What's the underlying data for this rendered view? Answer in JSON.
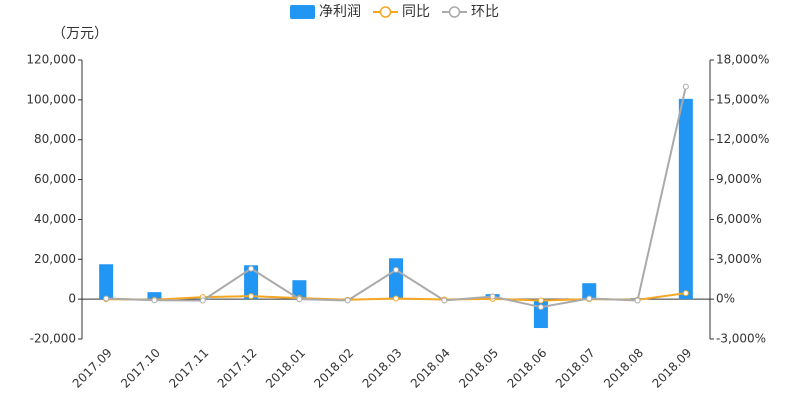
{
  "chart_data": {
    "type": "bar-line",
    "unit_label": "（万元）",
    "categories": [
      "2017.09",
      "2017.10",
      "2017.11",
      "2017.12",
      "2018.01",
      "2018.02",
      "2018.03",
      "2018.04",
      "2018.05",
      "2018.06",
      "2018.07",
      "2018.08",
      "2018.09"
    ],
    "series": [
      {
        "name": "净利润",
        "type": "bar",
        "color": "#2196f3",
        "axis": "y",
        "values": [
          17500,
          3500,
          300,
          17000,
          9500,
          -500,
          20500,
          -500,
          2500,
          -14500,
          8000,
          500,
          100500
        ]
      },
      {
        "name": "同比",
        "type": "line",
        "color": "#f5a623",
        "axis": "y2",
        "values": [
          0,
          -50,
          150,
          225,
          75,
          -50,
          50,
          -30,
          20,
          -100,
          0,
          -50,
          450
        ]
      },
      {
        "name": "环比",
        "type": "line",
        "color": "#aaaaaa",
        "axis": "y2",
        "values": [
          50,
          -80,
          -100,
          2300,
          0,
          -100,
          2200,
          -100,
          200,
          -600,
          50,
          -100,
          16000
        ]
      }
    ],
    "ylim": [
      -20000,
      120000
    ],
    "yticks": [
      {
        "value": -20000,
        "label": "-20,000"
      },
      0,
      {
        "value": 20000,
        "label": "20,000"
      },
      {
        "value": 40000,
        "label": "40,000"
      },
      {
        "value": 60000,
        "label": "60,000"
      },
      {
        "value": 80000,
        "label": "80,000"
      },
      {
        "value": 100000,
        "label": "100,000"
      },
      {
        "value": 120000,
        "label": "120,000"
      }
    ],
    "y2lim": [
      -3000,
      18000
    ],
    "y2ticks": [
      {
        "value": -3000,
        "label": "-3,000%"
      },
      {
        "value": 0,
        "label": "0%"
      },
      {
        "value": 3000,
        "label": "3,000%"
      },
      {
        "value": 6000,
        "label": "6,000%"
      },
      {
        "value": 9000,
        "label": "9,000%"
      },
      {
        "value": 12000,
        "label": "12,000%"
      },
      {
        "value": 15000,
        "label": "15,000%"
      },
      {
        "value": 18000,
        "label": "18,000%"
      }
    ],
    "grid": false,
    "legend": "top"
  }
}
